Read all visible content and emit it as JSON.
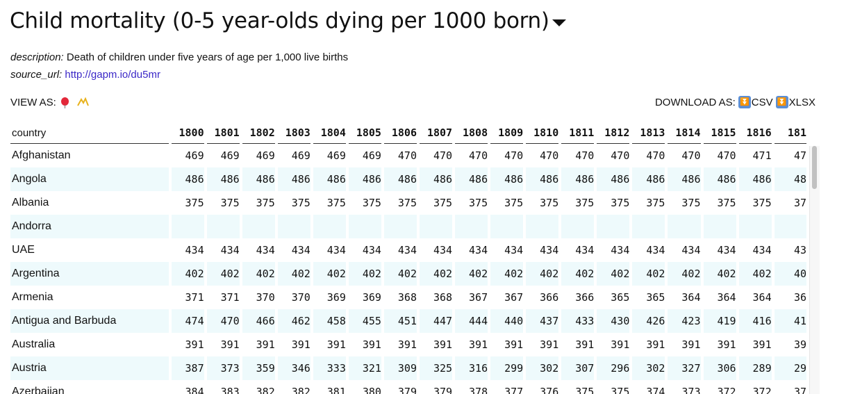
{
  "header": {
    "title": "Child mortality (0-5 year-olds dying per 1000 born)",
    "description_key": "description:",
    "description": "Death of children under five years of age per 1,000 live births",
    "source_key": "source_url:",
    "source_url": "http://gapm.io/du5mr"
  },
  "view_as": {
    "label": "VIEW AS:",
    "icons": [
      "balloon-icon",
      "graph-icon"
    ]
  },
  "download": {
    "label": "DOWNLOAD AS:",
    "csv": "CSV",
    "xlsx": "XLSX"
  },
  "table": {
    "country_header": "country",
    "years": [
      "1800",
      "1801",
      "1802",
      "1803",
      "1804",
      "1805",
      "1806",
      "1807",
      "1808",
      "1809",
      "1810",
      "1811",
      "1812",
      "1813",
      "1814",
      "1815",
      "1816",
      "181"
    ],
    "rows": [
      {
        "country": "Afghanistan",
        "values": [
          "469",
          "469",
          "469",
          "469",
          "469",
          "469",
          "470",
          "470",
          "470",
          "470",
          "470",
          "470",
          "470",
          "470",
          "470",
          "470",
          "471",
          "47"
        ]
      },
      {
        "country": "Angola",
        "values": [
          "486",
          "486",
          "486",
          "486",
          "486",
          "486",
          "486",
          "486",
          "486",
          "486",
          "486",
          "486",
          "486",
          "486",
          "486",
          "486",
          "486",
          "48"
        ]
      },
      {
        "country": "Albania",
        "values": [
          "375",
          "375",
          "375",
          "375",
          "375",
          "375",
          "375",
          "375",
          "375",
          "375",
          "375",
          "375",
          "375",
          "375",
          "375",
          "375",
          "375",
          "37"
        ]
      },
      {
        "country": "Andorra",
        "values": [
          "",
          "",
          "",
          "",
          "",
          "",
          "",
          "",
          "",
          "",
          "",
          "",
          "",
          "",
          "",
          "",
          "",
          ""
        ]
      },
      {
        "country": "UAE",
        "values": [
          "434",
          "434",
          "434",
          "434",
          "434",
          "434",
          "434",
          "434",
          "434",
          "434",
          "434",
          "434",
          "434",
          "434",
          "434",
          "434",
          "434",
          "43"
        ]
      },
      {
        "country": "Argentina",
        "values": [
          "402",
          "402",
          "402",
          "402",
          "402",
          "402",
          "402",
          "402",
          "402",
          "402",
          "402",
          "402",
          "402",
          "402",
          "402",
          "402",
          "402",
          "40"
        ]
      },
      {
        "country": "Armenia",
        "values": [
          "371",
          "371",
          "370",
          "370",
          "369",
          "369",
          "368",
          "368",
          "367",
          "367",
          "366",
          "366",
          "365",
          "365",
          "364",
          "364",
          "364",
          "36"
        ]
      },
      {
        "country": "Antigua and Barbuda",
        "values": [
          "474",
          "470",
          "466",
          "462",
          "458",
          "455",
          "451",
          "447",
          "444",
          "440",
          "437",
          "433",
          "430",
          "426",
          "423",
          "419",
          "416",
          "41"
        ]
      },
      {
        "country": "Australia",
        "values": [
          "391",
          "391",
          "391",
          "391",
          "391",
          "391",
          "391",
          "391",
          "391",
          "391",
          "391",
          "391",
          "391",
          "391",
          "391",
          "391",
          "391",
          "39"
        ]
      },
      {
        "country": "Austria",
        "values": [
          "387",
          "373",
          "359",
          "346",
          "333",
          "321",
          "309",
          "325",
          "316",
          "299",
          "302",
          "307",
          "296",
          "302",
          "327",
          "306",
          "289",
          "29"
        ]
      },
      {
        "country": "Azerbaijan",
        "values": [
          "384",
          "383",
          "382",
          "382",
          "381",
          "380",
          "379",
          "379",
          "378",
          "377",
          "376",
          "375",
          "375",
          "374",
          "373",
          "372",
          "372",
          "37"
        ]
      }
    ]
  }
}
